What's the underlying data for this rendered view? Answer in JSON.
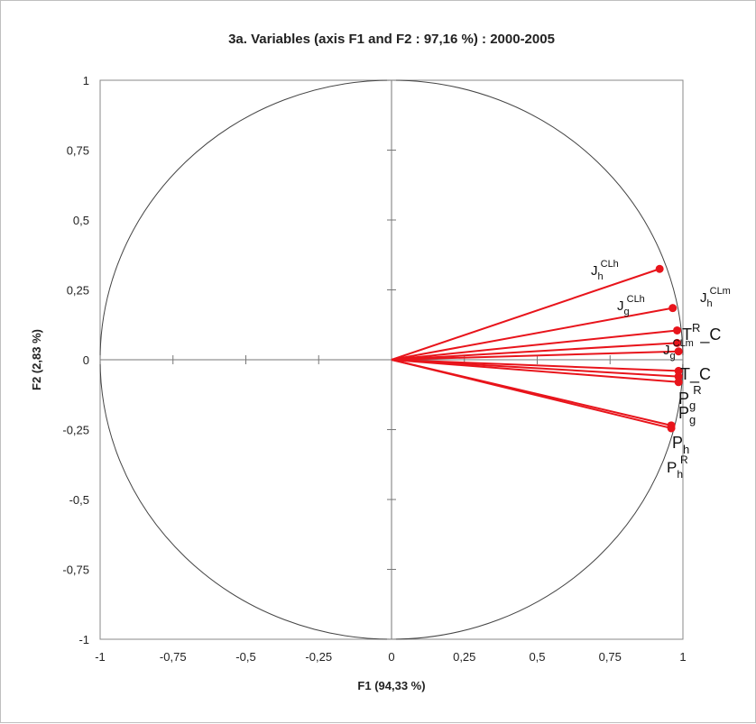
{
  "chart_data": {
    "type": "scatter",
    "title": "3a. Variables (axis F1 and F2 : 97,16 %) : 2000-2005",
    "xlabel": "F1 (94,33 %)",
    "ylabel": "F2 (2,83 %)",
    "xlim": [
      -1,
      1
    ],
    "ylim": [
      -1,
      1
    ],
    "x_tick_labels": [
      "-1",
      "-0,75",
      "-0,5",
      "-0,25",
      "0",
      "0,25",
      "0,5",
      "0,75",
      "1"
    ],
    "y_tick_labels": [
      "1",
      "0,75",
      "0,5",
      "0,25",
      "0",
      "-0,25",
      "-0,5",
      "-0,75",
      "-1"
    ],
    "x_ticks": [
      -1,
      -0.75,
      -0.5,
      -0.25,
      0,
      0.25,
      0.5,
      0.75,
      1
    ],
    "y_ticks": [
      1,
      0.75,
      0.5,
      0.25,
      0,
      -0.25,
      -0.5,
      -0.75,
      -1
    ],
    "correlation_circle": true,
    "marker_color": "#e8141b",
    "points": [
      {
        "x": 0.92,
        "y": 0.325
      },
      {
        "x": 0.965,
        "y": 0.185
      },
      {
        "x": 0.98,
        "y": 0.105
      },
      {
        "x": 0.98,
        "y": 0.06
      },
      {
        "x": 0.985,
        "y": 0.03
      },
      {
        "x": 0.985,
        "y": -0.04
      },
      {
        "x": 0.985,
        "y": -0.06
      },
      {
        "x": 0.985,
        "y": -0.08
      },
      {
        "x": 0.96,
        "y": -0.235
      },
      {
        "x": 0.96,
        "y": -0.245
      }
    ],
    "labels": [
      {
        "base": "J",
        "sub": "h",
        "sup": "CLh"
      },
      {
        "base": "J",
        "sub": "g",
        "sup": "CLh"
      },
      {
        "base": "J",
        "sub": "h",
        "sup": "CLm"
      },
      {
        "base": "J",
        "sub": "g",
        "sup": "CLm"
      },
      {
        "base": "T",
        "sup": "R",
        "tail": "_C"
      },
      {
        "base": "T_C"
      },
      {
        "base": "P",
        "sub": "g",
        "sup": "R"
      },
      {
        "base": "P",
        "sub": "g"
      },
      {
        "base": "P",
        "sub": "h"
      },
      {
        "base": "P",
        "sub": "h",
        "sup": "R"
      }
    ]
  }
}
